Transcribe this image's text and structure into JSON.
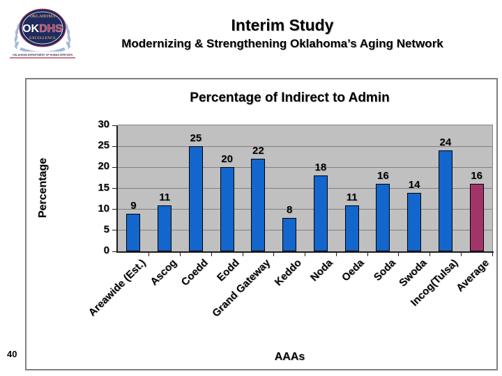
{
  "header": {
    "title": "Interim Study",
    "subtitle": "Modernizing & Strengthening Oklahoma’s Aging Network"
  },
  "footer": {
    "page_number": "40"
  },
  "logo": {
    "top_text": "OKLAHOMA",
    "ok_text": "OK",
    "dhs_text": "DHS",
    "bottom_oval_text": "EXCELLENCE",
    "banner_text": "OKLAHOMA DEPARTMENT OF HUMAN SERVICES",
    "colors": {
      "oval": "#1f2a5e",
      "laurel": "#a4b8d8",
      "gold": "#c9a66b",
      "red": "#b52a3f",
      "white": "#ffffff"
    }
  },
  "chart_data": {
    "type": "bar",
    "title": "Percentage of Indirect to Admin",
    "xlabel": "AAAs",
    "ylabel": "Percentage",
    "categories": [
      "Areawide (Est.)",
      "Ascog",
      "Coedd",
      "Eodd",
      "Grand Gateway",
      "Keddo",
      "Noda",
      "Oeda",
      "Soda",
      "Swoda",
      "Incog(Tulsa)",
      "Average"
    ],
    "values": [
      9,
      11,
      25,
      20,
      22,
      8,
      18,
      11,
      16,
      14,
      24,
      16
    ],
    "ylim": [
      0,
      30
    ],
    "yticks": [
      0,
      5,
      10,
      15,
      20,
      25,
      30
    ],
    "grid": true,
    "legend_position": "none",
    "plot_bg_color": "#c0c0c0",
    "grid_color": "#808080",
    "default_bar_color": "#1366cc",
    "highlight": {
      "index": 11,
      "color": "#a23568"
    }
  }
}
